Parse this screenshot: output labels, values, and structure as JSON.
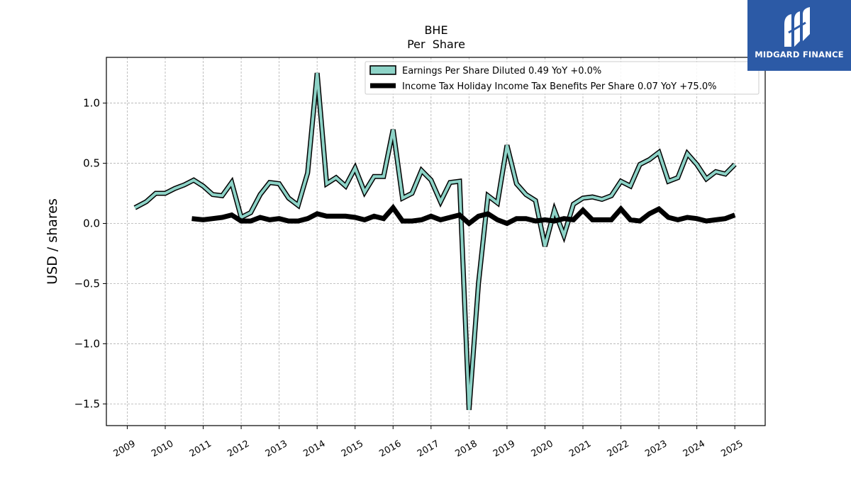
{
  "brand": {
    "name": "MIDGARD FINANCE",
    "logo_icon": "midgard-m-mark-icon",
    "color": "#2c5aa6"
  },
  "chart_data": {
    "type": "line",
    "title": "BHE",
    "subtitle": "Per  Share",
    "xlabel": "",
    "ylabel": "USD / shares",
    "ylim": [
      -1.68,
      1.38
    ],
    "yticks": [
      1.0,
      0.5,
      0.0,
      -0.5,
      -1.0,
      -1.5
    ],
    "ytick_labels": [
      "1.0",
      "0.5",
      "0.0",
      "−0.5",
      "−1.0",
      "−1.5"
    ],
    "xlim": [
      2008.45,
      2025.8
    ],
    "xticks": [
      "2009",
      "2010",
      "2011",
      "2012",
      "2013",
      "2014",
      "2015",
      "2016",
      "2017",
      "2018",
      "2019",
      "2020",
      "2021",
      "2022",
      "2023",
      "2024",
      "2025"
    ],
    "grid": true,
    "legend_position": "top-right",
    "series": [
      {
        "name": "Earnings Per Share Diluted  0.49 YoY +0.0%",
        "color": "#8dd3c7",
        "edge_color": "#000000",
        "style": "outlined",
        "x": [
          2009.2,
          2009.5,
          2009.75,
          2010.0,
          2010.25,
          2010.5,
          2010.75,
          2011.0,
          2011.25,
          2011.5,
          2011.75,
          2012.0,
          2012.25,
          2012.5,
          2012.75,
          2013.0,
          2013.25,
          2013.5,
          2013.75,
          2014.0,
          2014.25,
          2014.5,
          2014.75,
          2015.0,
          2015.25,
          2015.5,
          2015.75,
          2016.0,
          2016.25,
          2016.5,
          2016.75,
          2017.0,
          2017.25,
          2017.5,
          2017.75,
          2018.0,
          2018.25,
          2018.5,
          2018.75,
          2019.0,
          2019.25,
          2019.5,
          2019.75,
          2020.0,
          2020.25,
          2020.5,
          2020.75,
          2021.0,
          2021.25,
          2021.5,
          2021.75,
          2022.0,
          2022.25,
          2022.5,
          2022.75,
          2023.0,
          2023.25,
          2023.5,
          2023.75,
          2024.0,
          2024.25,
          2024.5,
          2024.75,
          2025.0
        ],
        "values": [
          0.13,
          0.18,
          0.25,
          0.25,
          0.29,
          0.32,
          0.36,
          0.31,
          0.24,
          0.23,
          0.34,
          0.05,
          0.09,
          0.24,
          0.34,
          0.33,
          0.21,
          0.15,
          0.42,
          1.25,
          0.33,
          0.38,
          0.31,
          0.46,
          0.26,
          0.39,
          0.39,
          0.78,
          0.21,
          0.25,
          0.44,
          0.36,
          0.18,
          0.34,
          0.35,
          -1.55,
          -0.5,
          0.23,
          0.17,
          0.65,
          0.33,
          0.24,
          0.19,
          -0.19,
          0.11,
          -0.1,
          0.16,
          0.21,
          0.22,
          0.2,
          0.23,
          0.35,
          0.31,
          0.49,
          0.53,
          0.59,
          0.35,
          0.38,
          0.58,
          0.49,
          0.37,
          0.43,
          0.41,
          0.49
        ]
      },
      {
        "name": "Income Tax Holiday Income Tax Benefits Per Share  0.07 YoY +75.0%",
        "color": "#000000",
        "style": "thick",
        "x": [
          2010.7,
          2011.0,
          2011.25,
          2011.5,
          2011.75,
          2012.0,
          2012.25,
          2012.5,
          2012.75,
          2013.0,
          2013.25,
          2013.5,
          2013.75,
          2014.0,
          2014.25,
          2014.5,
          2014.75,
          2015.0,
          2015.25,
          2015.5,
          2015.75,
          2016.0,
          2016.25,
          2016.5,
          2016.75,
          2017.0,
          2017.25,
          2017.5,
          2017.75,
          2018.0,
          2018.25,
          2018.5,
          2018.75,
          2019.0,
          2019.25,
          2019.5,
          2019.75,
          2020.0,
          2020.25,
          2020.5,
          2020.75,
          2021.0,
          2021.25,
          2021.5,
          2021.75,
          2022.0,
          2022.25,
          2022.5,
          2022.75,
          2023.0,
          2023.25,
          2023.5,
          2023.75,
          2024.0,
          2024.25,
          2024.5,
          2024.75,
          2025.0
        ],
        "values": [
          0.04,
          0.03,
          0.04,
          0.05,
          0.07,
          0.02,
          0.02,
          0.05,
          0.03,
          0.04,
          0.02,
          0.02,
          0.04,
          0.08,
          0.06,
          0.06,
          0.06,
          0.05,
          0.03,
          0.06,
          0.04,
          0.13,
          0.02,
          0.02,
          0.03,
          0.06,
          0.03,
          0.05,
          0.07,
          0.0,
          0.06,
          0.08,
          0.03,
          0.0,
          0.04,
          0.04,
          0.02,
          0.03,
          0.02,
          0.04,
          0.03,
          0.11,
          0.03,
          0.03,
          0.03,
          0.12,
          0.03,
          0.02,
          0.08,
          0.12,
          0.05,
          0.03,
          0.05,
          0.04,
          0.02,
          0.03,
          0.04,
          0.07
        ]
      }
    ]
  }
}
